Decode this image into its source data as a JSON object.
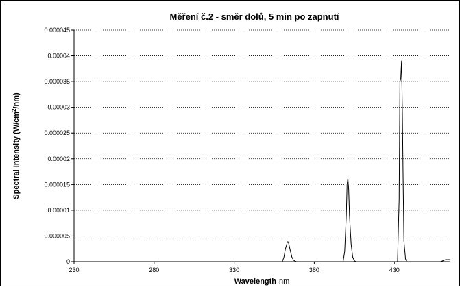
{
  "chart_data": {
    "type": "line",
    "title": "Měření č.2 - směr dolů, 5 min po zapnutí",
    "xlabel": "Wavelength",
    "xlabel_unit": "nm",
    "ylabel_prefix": "Spectral Intensity (W/cm",
    "ylabel_sup": "2",
    "ylabel_suffix": "/nm)",
    "xlim": [
      230,
      465
    ],
    "ylim": [
      0,
      4.5e-05
    ],
    "x_ticks": [
      230,
      280,
      330,
      380,
      430
    ],
    "x_tick_labels": [
      "230",
      "280",
      "330",
      "380",
      "430"
    ],
    "y_ticks": [
      0,
      5e-06,
      1e-05,
      1.5e-05,
      2e-05,
      2.5e-05,
      3e-05,
      3.5e-05,
      4e-05,
      4.5e-05
    ],
    "y_tick_labels": [
      "0",
      "0.000005",
      "0.00001",
      "0.000015",
      "0.00002",
      "0.000025",
      "0.00003",
      "0.000035",
      "0.00004",
      "0.000045"
    ],
    "grid": "horizontal dotted",
    "series": [
      {
        "color": "#000000",
        "x": [
          230,
          360,
          361,
          362,
          363,
          363.5,
          364,
          365,
          366,
          367,
          368,
          369,
          398,
          399,
          400,
          400.5,
          401,
          401.5,
          402,
          403,
          404,
          405,
          406,
          432,
          433,
          433.5,
          434,
          434.5,
          435,
          435.5,
          436,
          437,
          438,
          459,
          462,
          465
        ],
        "y": [
          0,
          0,
          8e-07,
          2.5e-06,
          3.6e-06,
          3.9e-06,
          3.6e-06,
          2.2e-06,
          9e-07,
          3e-07,
          1e-07,
          0,
          0,
          2e-06,
          9e-06,
          1.5e-05,
          1.62e-05,
          1.4e-05,
          9e-06,
          3.5e-06,
          9e-07,
          2e-07,
          0,
          0,
          1.2e-05,
          3.5e-05,
          3.55e-05,
          3.9e-05,
          3e-05,
          1.6e-05,
          4e-06,
          5e-07,
          0,
          0,
          4e-07,
          4e-07
        ]
      }
    ]
  }
}
